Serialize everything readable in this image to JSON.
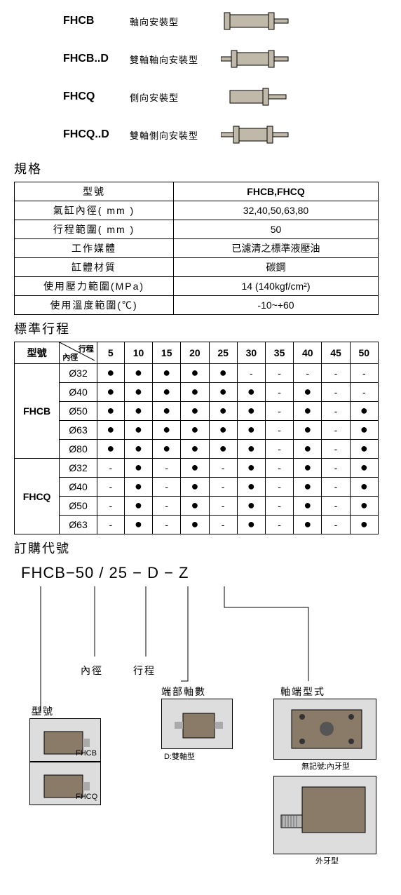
{
  "product_types": [
    {
      "code": "FHCB",
      "desc": "軸向安裝型",
      "variant": "single-axial"
    },
    {
      "code": "FHCB..D",
      "desc": "雙軸軸向安裝型",
      "variant": "double-axial"
    },
    {
      "code": "FHCQ",
      "desc": "側向安裝型",
      "variant": "single-side"
    },
    {
      "code": "FHCQ..D",
      "desc": "雙軸側向安裝型",
      "variant": "double-side"
    }
  ],
  "spec": {
    "title": "規格",
    "rows": [
      {
        "label": "型號",
        "value": "FHCB,FHCQ",
        "bold": true
      },
      {
        "label": "氣缸內徑( mm )",
        "value": "32,40,50,63,80"
      },
      {
        "label": "行程範圍( mm )",
        "value": "50"
      },
      {
        "label": "工作媒體",
        "value": "已濾清之標準液壓油"
      },
      {
        "label": "缸體材質",
        "value": "碳鋼"
      },
      {
        "label": "使用壓力範圍(MPa)",
        "value": "14 (140kgf/cm²)"
      },
      {
        "label": "使用溫度範圍(℃)",
        "value": "-10~+60"
      }
    ]
  },
  "stroke": {
    "title": "標準行程",
    "header_model": "型號",
    "header_diag_top": "行程",
    "header_diag_bot": "內徑",
    "strokes": [
      "5",
      "10",
      "15",
      "20",
      "25",
      "30",
      "35",
      "40",
      "45",
      "50"
    ],
    "groups": [
      {
        "model": "FHCB",
        "rows": [
          {
            "diam": "Ø32",
            "vals": [
              "●",
              "●",
              "●",
              "●",
              "●",
              "-",
              "-",
              "-",
              "-",
              "-"
            ]
          },
          {
            "diam": "Ø40",
            "vals": [
              "●",
              "●",
              "●",
              "●",
              "●",
              "●",
              "-",
              "●",
              "-",
              "-"
            ]
          },
          {
            "diam": "Ø50",
            "vals": [
              "●",
              "●",
              "●",
              "●",
              "●",
              "●",
              "-",
              "●",
              "-",
              "●"
            ]
          },
          {
            "diam": "Ø63",
            "vals": [
              "●",
              "●",
              "●",
              "●",
              "●",
              "●",
              "-",
              "●",
              "-",
              "●"
            ]
          },
          {
            "diam": "Ø80",
            "vals": [
              "●",
              "●",
              "●",
              "●",
              "●",
              "●",
              "-",
              "●",
              "-",
              "●"
            ]
          }
        ]
      },
      {
        "model": "FHCQ",
        "rows": [
          {
            "diam": "Ø32",
            "vals": [
              "-",
              "●",
              "-",
              "●",
              "-",
              "●",
              "-",
              "●",
              "-",
              "●"
            ]
          },
          {
            "diam": "Ø40",
            "vals": [
              "-",
              "●",
              "-",
              "●",
              "-",
              "●",
              "-",
              "●",
              "-",
              "●"
            ]
          },
          {
            "diam": "Ø50",
            "vals": [
              "-",
              "●",
              "-",
              "●",
              "-",
              "●",
              "-",
              "●",
              "-",
              "●"
            ]
          },
          {
            "diam": "Ø63",
            "vals": [
              "-",
              "●",
              "-",
              "●",
              "-",
              "●",
              "-",
              "●",
              "-",
              "●"
            ]
          }
        ]
      }
    ]
  },
  "order": {
    "title": "訂購代號",
    "formula": "FHCB−50  /  25 − D − Z",
    "labels": {
      "model": "型號",
      "bore": "內徑",
      "stroke": "行程",
      "shaft_count": "端部軸數",
      "shaft_type": "軸端型式",
      "d_note": "D:雙軸型",
      "fhcb": "FHCB",
      "fhcq": "FHCQ",
      "no_mark": "無記號:內牙型",
      "ext_thread": "外牙型"
    }
  },
  "colors": {
    "diagram_fill": "#c0b8a8",
    "diagram_stroke": "#000000",
    "photo_bg": "#888888"
  }
}
